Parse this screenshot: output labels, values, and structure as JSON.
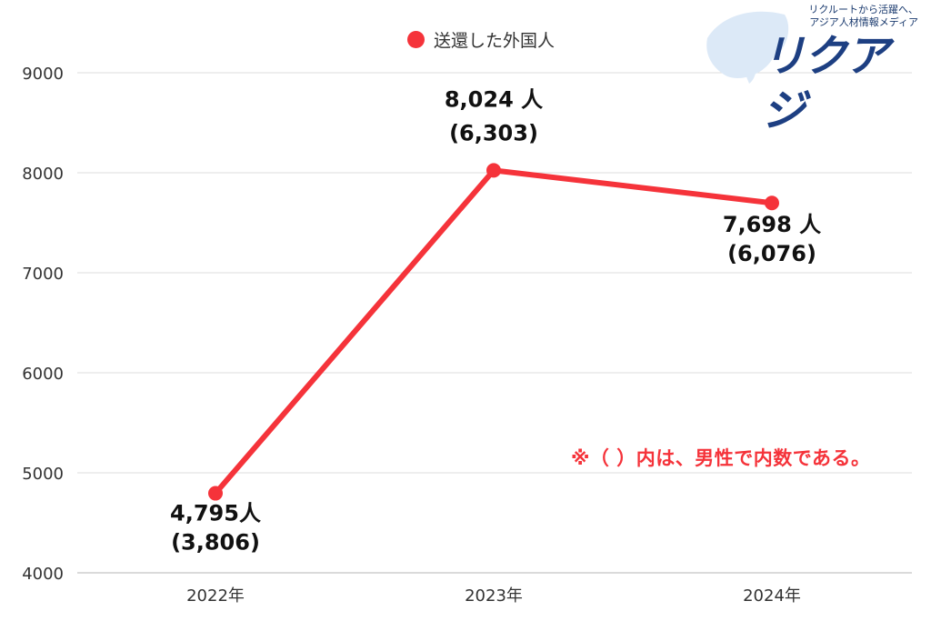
{
  "chart_data": {
    "type": "line",
    "categories": [
      "2022年",
      "2023年",
      "2024年"
    ],
    "series": [
      {
        "name": "送還した外国人",
        "values": [
          4795,
          8024,
          7698
        ],
        "color": "#f5333a"
      }
    ],
    "data_labels": [
      {
        "line1": "4,795人",
        "line2": "(3,806)"
      },
      {
        "line1": "8,024 人",
        "line2": "(6,303)"
      },
      {
        "line1": "7,698 人",
        "line2": "(6,076)"
      }
    ],
    "y_ticks": [
      "4000",
      "5000",
      "6000",
      "7000",
      "8000",
      "9000"
    ],
    "ylim": [
      4000,
      9000
    ],
    "grid": true,
    "legend_position": "top-center"
  },
  "note": {
    "text": "※（ ）内は、男性で内数である。",
    "color": "#f5333a"
  },
  "logo": {
    "tagline_1": "リクルートから活躍へ、",
    "tagline_2": "アジア人材情報メディア",
    "wordmark": "リクアジ"
  }
}
